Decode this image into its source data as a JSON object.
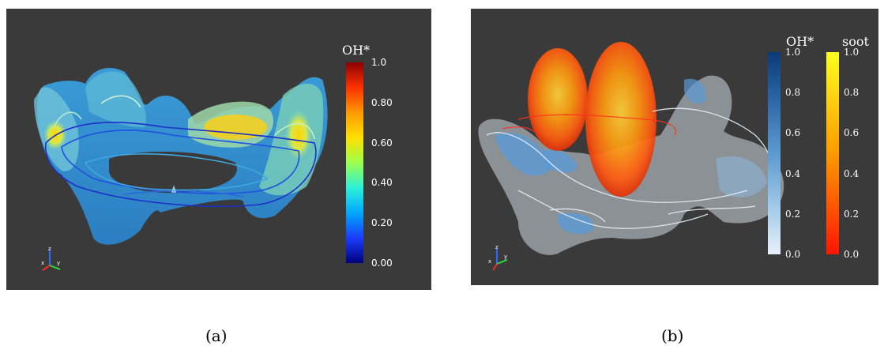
{
  "figure_a": {
    "colorbar": {
      "title": "OH*",
      "ticks": [
        "1.0",
        "0.80",
        "0.60",
        "0.40",
        "0.20",
        "0.00"
      ],
      "gradient": [
        "#8b0000",
        "#ff3000",
        "#ff9900",
        "#ffe000",
        "#9cff4c",
        "#2cf0d8",
        "#00a8ff",
        "#1a3cff",
        "#00007a"
      ]
    },
    "caption": "(a)"
  },
  "figure_b": {
    "colorbar_oh": {
      "title": "OH*",
      "ticks": [
        "1.0",
        "0.8",
        "0.6",
        "0.4",
        "0.2",
        "0.0"
      ],
      "gradient": [
        "#0b3a78",
        "#2c6aa8",
        "#5b9bd0",
        "#9cc7e8",
        "#e8f1fa"
      ]
    },
    "colorbar_soot": {
      "title": "soot",
      "ticks": [
        "1.0",
        "0.8",
        "0.6",
        "0.4",
        "0.2",
        "0.0"
      ],
      "gradient": [
        "#ffff20",
        "#ffcc10",
        "#ff9a00",
        "#ff5a00",
        "#ff1500"
      ]
    },
    "caption": "(b)"
  },
  "axis_triad_labels": {
    "x": "x",
    "y": "y",
    "z": "z"
  },
  "background_color": "#3a3a3a"
}
